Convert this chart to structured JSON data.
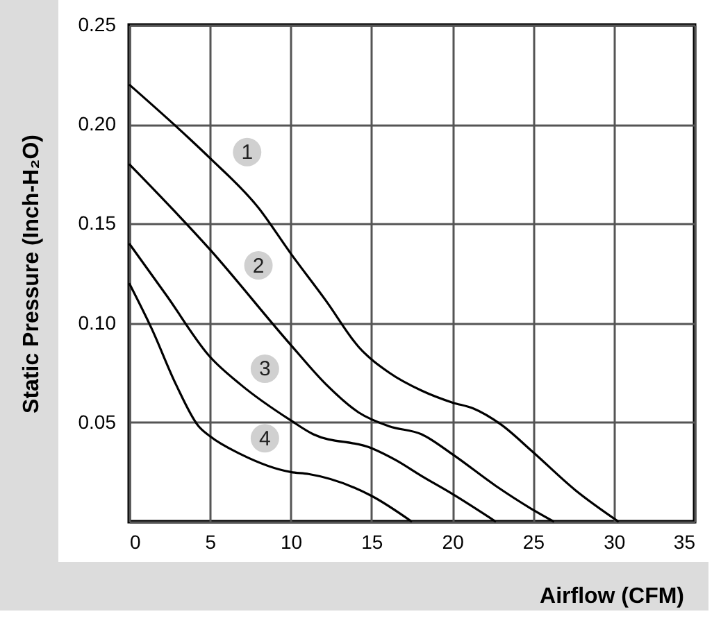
{
  "chart_data": {
    "type": "line",
    "xlabel": "Airflow (CFM)",
    "ylabel": "Static Pressure (Inch-H₂O)",
    "xlim": [
      0,
      35
    ],
    "xticks": [
      0,
      5,
      10,
      15,
      20,
      25,
      30,
      35
    ],
    "ylim": [
      0,
      0.25
    ],
    "yticks": [
      {
        "value": 0,
        "label": null
      },
      0.05,
      {
        "value": 0.1,
        "label": "0.10"
      },
      0.15,
      {
        "value": 0.2,
        "label": "0.20"
      },
      0.25
    ],
    "grid": true,
    "marker": "none",
    "line_style": "solid",
    "series": [
      {
        "color": "#000000",
        "x": [
          0,
          3.7,
          5,
          8,
          10,
          12.2,
          14.2,
          16.1,
          18.1,
          20,
          21.3,
          23,
          25,
          27.6,
          30.3
        ],
        "values": [
          0.22,
          0.193,
          0.183,
          0.158,
          0.135,
          0.111,
          0.088,
          0.075,
          0.066,
          0.06,
          0.057,
          0.049,
          0.035,
          0.016,
          0
        ]
      },
      {
        "color": "#000000",
        "x": [
          0,
          5,
          10,
          12.2,
          14.2,
          16.1,
          18.1,
          20,
          22.7,
          25,
          26.3
        ],
        "values": [
          0.18,
          0.137,
          0.089,
          0.069,
          0.055,
          0.048,
          0.044,
          0.034,
          0.018,
          0.006,
          0
        ]
      },
      {
        "color": "#000000",
        "x": [
          0,
          2.3,
          5,
          6.9,
          10,
          11.4,
          15,
          16.5,
          18.1,
          20,
          22.7
        ],
        "values": [
          0.14,
          0.114,
          0.083,
          0.069,
          0.051,
          0.044,
          0.037,
          0.031,
          0.023,
          0.014,
          0
        ]
      },
      {
        "color": "#000000",
        "x": [
          0,
          1.4,
          2.9,
          4.3,
          5,
          6.9,
          10,
          11.1,
          15,
          17.5
        ],
        "values": [
          0.12,
          0.097,
          0.069,
          0.048,
          0.043,
          0.034,
          0.025,
          0.024,
          0.013,
          0
        ]
      }
    ],
    "annotations": [
      {
        "text": "1",
        "x": 7.3,
        "y": 0.186
      },
      {
        "text": "2",
        "x": 8,
        "y": 0.129
      },
      {
        "text": "3",
        "x": 8.4,
        "y": 0.077
      },
      {
        "text": "4",
        "x": 8.4,
        "y": 0.042
      }
    ]
  }
}
